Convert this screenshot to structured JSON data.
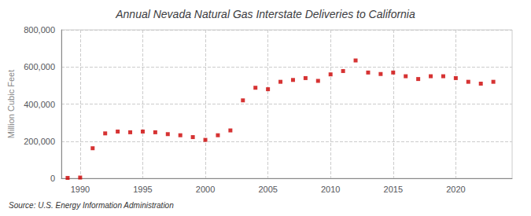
{
  "chart_data": {
    "type": "scatter",
    "title": "Annual Nevada Natural Gas Interstate Deliveries to California",
    "ylabel": "Million Cubic Feet",
    "source": "Source: U.S. Energy Information Administration",
    "color": "#cc0000",
    "marker": "square",
    "grid": true,
    "x": [
      1989,
      1990,
      1991,
      1992,
      1993,
      1994,
      1995,
      1996,
      1997,
      1998,
      1999,
      2000,
      2001,
      2002,
      2003,
      2004,
      2005,
      2006,
      2007,
      2008,
      2009,
      2010,
      2011,
      2012,
      2013,
      2014,
      2015,
      2016,
      2017,
      2018,
      2019,
      2020,
      2021,
      2022,
      2023
    ],
    "values": [
      2000,
      4000,
      162000,
      242000,
      252000,
      248000,
      252000,
      248000,
      238000,
      232000,
      222000,
      207000,
      232000,
      258000,
      420000,
      488000,
      480000,
      520000,
      530000,
      540000,
      525000,
      560000,
      578000,
      635000,
      570000,
      562000,
      570000,
      550000,
      535000,
      550000,
      550000,
      540000,
      520000,
      510000,
      520000
    ],
    "xlim": [
      1988.5,
      2024.5
    ],
    "xticks": [
      1990,
      1995,
      2000,
      2005,
      2010,
      2015,
      2020
    ],
    "ylim": [
      0,
      800000
    ],
    "yticks": [
      0,
      {
        "value": 200000,
        "label": "200,000"
      },
      {
        "value": 400000,
        "label": "400,000"
      },
      {
        "value": 600000,
        "label": "600,000"
      },
      {
        "value": 800000,
        "label": "800,000"
      }
    ]
  }
}
